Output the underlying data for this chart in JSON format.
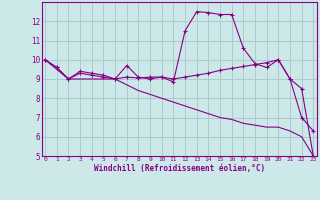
{
  "xlabel": "Windchill (Refroidissement éolien,°C)",
  "background_color": "#cce8e8",
  "grid_color": "#aacccc",
  "line_color": "#880088",
  "x_hours": [
    0,
    1,
    2,
    3,
    4,
    5,
    6,
    7,
    8,
    9,
    10,
    11,
    12,
    13,
    14,
    15,
    16,
    17,
    18,
    19,
    20,
    21,
    22,
    23
  ],
  "line1_y": [
    10.0,
    9.6,
    9.0,
    9.4,
    9.3,
    9.2,
    9.0,
    9.7,
    9.1,
    9.0,
    9.1,
    8.85,
    11.5,
    12.5,
    12.45,
    12.35,
    12.35,
    10.6,
    9.8,
    9.6,
    10.0,
    9.0,
    7.0,
    6.3
  ],
  "line2_y": [
    10.0,
    9.6,
    9.0,
    9.3,
    9.2,
    9.1,
    9.0,
    9.1,
    9.05,
    9.1,
    9.1,
    9.0,
    9.1,
    9.2,
    9.3,
    9.45,
    9.55,
    9.65,
    9.75,
    9.85,
    10.0,
    9.0,
    8.5,
    5.0
  ],
  "line3_y": [
    10.0,
    9.5,
    9.0,
    9.0,
    9.0,
    9.0,
    9.0,
    8.7,
    8.4,
    8.2,
    8.0,
    7.8,
    7.6,
    7.4,
    7.2,
    7.0,
    6.9,
    6.7,
    6.6,
    6.5,
    6.5,
    6.3,
    6.0,
    5.0
  ],
  "ylim_min": 5.0,
  "ylim_max": 13.0,
  "yticks": [
    5,
    6,
    7,
    8,
    9,
    10,
    11,
    12
  ],
  "xticks": [
    0,
    1,
    2,
    3,
    4,
    5,
    6,
    7,
    8,
    9,
    10,
    11,
    12,
    13,
    14,
    15,
    16,
    17,
    18,
    19,
    20,
    21,
    22,
    23
  ]
}
